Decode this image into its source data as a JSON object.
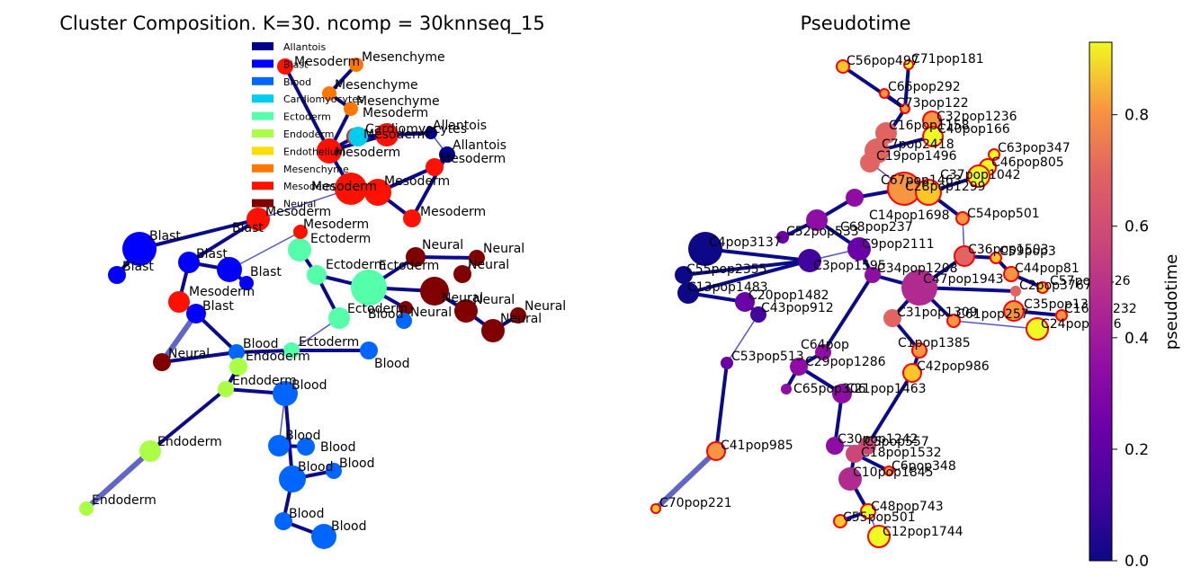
{
  "chart_data": [
    {
      "type": "graph",
      "title": "Cluster Composition. K=30. ncomp = 30knnseq_15",
      "legend": {
        "placement": "top-center",
        "entries": [
          {
            "name": "Allantois",
            "color": "#00008b"
          },
          {
            "name": "Blast",
            "color": "#0000ff"
          },
          {
            "name": "Blood",
            "color": "#0066ff"
          },
          {
            "name": "Cardiomyocytes",
            "color": "#00ccee"
          },
          {
            "name": "Ectoderm",
            "color": "#55ffaa"
          },
          {
            "name": "Endoderm",
            "color": "#aaff44"
          },
          {
            "name": "Endothelium",
            "color": "#ffdd00"
          },
          {
            "name": "Mesenchyme",
            "color": "#ff7700"
          },
          {
            "name": "Mesoderm",
            "color": "#ff1100"
          },
          {
            "name": "Neural",
            "color": "#800000"
          }
        ]
      },
      "node_labels": [
        "Mesoderm",
        "Mesenchyme",
        "Mesenchyme",
        "Mesenchyme",
        "Mesoderm",
        "Cardiomyocytes",
        "Allantois",
        "Mesoderm",
        "Allantois",
        "Mesoderm",
        "Mesoderm",
        "Mesoderm",
        "Mesoderm",
        "Mesoderm",
        "Mesoderm",
        "Ectoderm",
        "Blast",
        "Blast",
        "Mesoderm",
        "Blast",
        "Blast",
        "Blast",
        "Mesoderm",
        "Blast",
        "Ectoderm",
        "Ectoderm",
        "Neural",
        "Neural",
        "Neural",
        "Neural",
        "Neural",
        "Neural",
        "Neural",
        "Neural",
        "Blood",
        "Ectoderm",
        "Blood",
        "Ectoderm",
        "Blood",
        "Endoderm",
        "Neural",
        "Endoderm",
        "Blood",
        "Endoderm",
        "Endoderm",
        "Blood",
        "Blood",
        "Blood",
        "Blood",
        "Blood",
        "Blood"
      ]
    },
    {
      "type": "graph",
      "title": "Pseudotime",
      "colorbar": {
        "label": "pseudotime",
        "range": [
          0.0,
          0.93
        ],
        "ticks": [
          "0.0",
          "0.2",
          "0.4",
          "0.6",
          "0.8"
        ],
        "colormap": "plasma"
      },
      "node_labels": [
        "C56pop497",
        "C71pop181",
        "C66pop292",
        "C73pop122",
        "C32pop1236",
        "C16pop1158",
        "C40pop166",
        "C7pop2418",
        "C63pop347",
        "C19pop1496",
        "C46pop805",
        "C37pop1042",
        "C67pop1463",
        "C28pop1299",
        "C14pop1698",
        "C54pop501",
        "C68pop237",
        "C52pop533",
        "C9pop2111",
        "C4pop3137",
        "C36pop1503",
        "C59pop3",
        "C44pop81",
        "C3pop1595",
        "C34pop1208",
        "C57pop1426",
        "C47pop1943",
        "C2pop3767",
        "C55pop2355",
        "C13pop1483",
        "C20pop1482",
        "C35pop1333",
        "C16pop232",
        "C43pop912",
        "C31pop1309",
        "C61pop257",
        "C24pop1416",
        "C64pop",
        "C1pop1385",
        "C42pop986",
        "C53pop513",
        "C29pop1286",
        "C65pop306",
        "C21pop1463",
        "C30pop1242",
        "C5pop557",
        "C18pop1532",
        "C6pop348",
        "C10pop1845",
        "C41pop985",
        "C70pop221",
        "C48pop743",
        "C55pop501",
        "C12pop1744"
      ]
    }
  ]
}
